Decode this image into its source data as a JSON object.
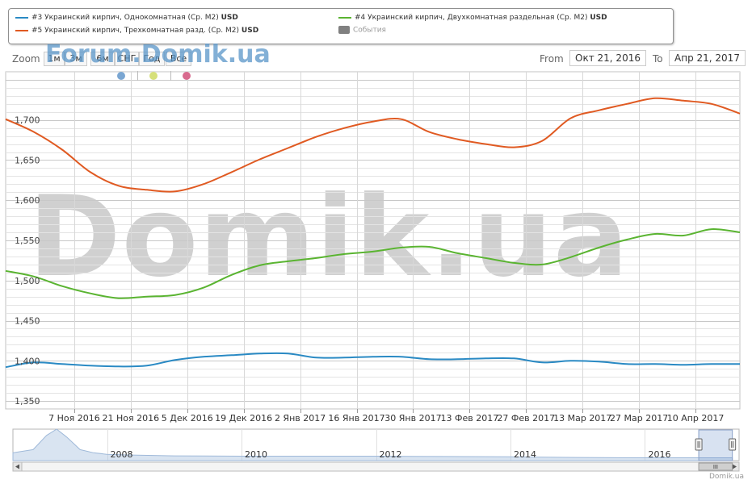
{
  "legend": {
    "items": [
      {
        "label": "#3 Украинский кирпич, Однокомнатная (Ср. М2) ",
        "unit": "USD",
        "color": "#2a8ac4"
      },
      {
        "label": "#4 Украинский кирпич, Двухкомнатная раздельная (Ср. М2) ",
        "unit": "USD",
        "color": "#5ab431"
      },
      {
        "label": "#5 Украинский кирпич, Трехкомнатная разд. (Ср. М2) ",
        "unit": "USD",
        "color": "#e05a22"
      },
      {
        "label": "События",
        "unit": "",
        "color": "#808080"
      }
    ]
  },
  "zoom": {
    "label": "Zoom",
    "buttons": [
      "1м",
      "3м",
      "6м",
      "СНГ",
      "Год",
      "Все"
    ]
  },
  "range": {
    "from_label": "From",
    "from_value": "Окт 21, 2016",
    "to_label": "To",
    "to_value": "Апр 21, 2017"
  },
  "watermark": {
    "main": "Domik.ua",
    "forum": "Forum.Domik.ua"
  },
  "credit": "Domik.ua",
  "chart_data": {
    "type": "line",
    "title": "",
    "ylim": [
      1340,
      1760
    ],
    "yticks": [
      1350,
      1400,
      1450,
      1500,
      1550,
      1600,
      1650,
      1700
    ],
    "ytick_labels": [
      "1,350",
      "1,400",
      "1,450",
      "1,500",
      "1,550",
      "1,600",
      "1,650",
      "1,700"
    ],
    "xlim": [
      "2016-10-21",
      "2017-04-21"
    ],
    "xticks": [
      {
        "date": "2016-11-07",
        "label": "7 Ноя 2016"
      },
      {
        "date": "2016-11-21",
        "label": "21 Ноя 2016"
      },
      {
        "date": "2016-12-05",
        "label": "5 Дек 2016"
      },
      {
        "date": "2016-12-19",
        "label": "19 Дек 2016"
      },
      {
        "date": "2017-01-02",
        "label": "2 Янв 2017"
      },
      {
        "date": "2017-01-16",
        "label": "16 Янв 2017"
      },
      {
        "date": "2017-01-30",
        "label": "30 Янв 2017"
      },
      {
        "date": "2017-02-13",
        "label": "13 Фев 2017"
      },
      {
        "date": "2017-02-27",
        "label": "27 Фев 2017"
      },
      {
        "date": "2017-03-13",
        "label": "13 Мар 2017"
      },
      {
        "date": "2017-03-27",
        "label": "27 Мар 2017"
      },
      {
        "date": "2017-04-10",
        "label": "10 Апр 2017"
      }
    ],
    "grid": true,
    "series": [
      {
        "color": "#2a8ac4",
        "x": [
          "2016-10-21",
          "2016-10-28",
          "2016-11-04",
          "2016-11-11",
          "2016-11-18",
          "2016-11-25",
          "2016-12-02",
          "2016-12-09",
          "2016-12-16",
          "2016-12-23",
          "2016-12-30",
          "2017-01-06",
          "2017-01-13",
          "2017-01-20",
          "2017-01-27",
          "2017-02-03",
          "2017-02-10",
          "2017-02-17",
          "2017-02-24",
          "2017-03-03",
          "2017-03-10",
          "2017-03-17",
          "2017-03-24",
          "2017-03-31",
          "2017-04-07",
          "2017-04-14",
          "2017-04-21"
        ],
        "y": [
          1392,
          1398,
          1396,
          1394,
          1393,
          1394,
          1401,
          1405,
          1407,
          1409,
          1409,
          1404,
          1404,
          1405,
          1405,
          1402,
          1402,
          1403,
          1403,
          1398,
          1400,
          1399,
          1396,
          1396,
          1395,
          1396,
          1396
        ]
      },
      {
        "color": "#5ab431",
        "x": [
          "2016-10-21",
          "2016-10-28",
          "2016-11-04",
          "2016-11-11",
          "2016-11-18",
          "2016-11-25",
          "2016-12-02",
          "2016-12-09",
          "2016-12-16",
          "2016-12-23",
          "2016-12-30",
          "2017-01-06",
          "2017-01-13",
          "2017-01-20",
          "2017-01-27",
          "2017-02-03",
          "2017-02-10",
          "2017-02-17",
          "2017-02-24",
          "2017-03-03",
          "2017-03-10",
          "2017-03-17",
          "2017-03-24",
          "2017-03-31",
          "2017-04-07",
          "2017-04-14",
          "2017-04-21"
        ],
        "y": [
          1512,
          1505,
          1493,
          1484,
          1478,
          1480,
          1482,
          1491,
          1507,
          1519,
          1524,
          1528,
          1533,
          1536,
          1541,
          1542,
          1534,
          1528,
          1522,
          1520,
          1529,
          1541,
          1551,
          1558,
          1556,
          1564,
          1560
        ]
      },
      {
        "color": "#e05a22",
        "x": [
          "2016-10-21",
          "2016-10-28",
          "2016-11-04",
          "2016-11-11",
          "2016-11-18",
          "2016-11-25",
          "2016-12-02",
          "2016-12-09",
          "2016-12-16",
          "2016-12-23",
          "2016-12-30",
          "2017-01-06",
          "2017-01-13",
          "2017-01-20",
          "2017-01-27",
          "2017-02-03",
          "2017-02-10",
          "2017-02-17",
          "2017-02-24",
          "2017-03-03",
          "2017-03-10",
          "2017-03-17",
          "2017-03-24",
          "2017-03-31",
          "2017-04-07",
          "2017-04-14",
          "2017-04-21"
        ],
        "y": [
          1701,
          1685,
          1663,
          1635,
          1618,
          1613,
          1611,
          1620,
          1635,
          1651,
          1665,
          1679,
          1690,
          1698,
          1701,
          1685,
          1676,
          1670,
          1666,
          1674,
          1702,
          1712,
          1720,
          1727,
          1724,
          1720,
          1708
        ]
      }
    ],
    "navigator": {
      "year_labels": [
        "2008",
        "2010",
        "2012",
        "2014",
        "2016"
      ],
      "year_values": [
        2008,
        2010,
        2012,
        2014,
        2016
      ],
      "xlim": [
        2006.6,
        2017.4
      ],
      "selected": [
        2016.8,
        2017.3
      ],
      "profile_x": [
        2006.6,
        2006.9,
        2007.1,
        2007.25,
        2007.4,
        2007.6,
        2007.8,
        2008.0,
        2008.3,
        2009,
        2010,
        2011,
        2012,
        2013,
        2014,
        2015,
        2016,
        2016.8,
        2017.3
      ],
      "profile_y": [
        0.25,
        0.35,
        0.8,
        1.0,
        0.75,
        0.35,
        0.25,
        0.2,
        0.18,
        0.15,
        0.14,
        0.14,
        0.14,
        0.13,
        0.12,
        0.1,
        0.09,
        0.09,
        0.09
      ]
    }
  }
}
